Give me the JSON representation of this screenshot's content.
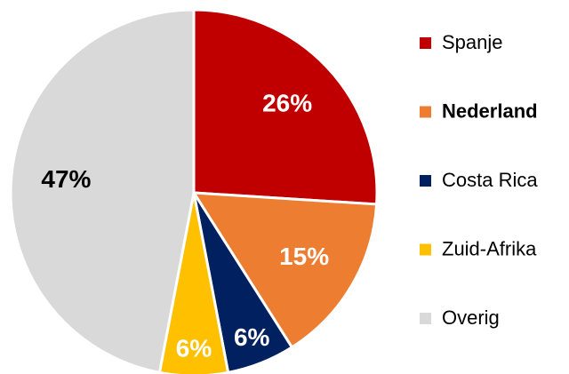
{
  "chart_data": {
    "type": "pie",
    "categories": [
      "Spanje",
      "Nederland",
      "Costa Rica",
      "Zuid-Afrika",
      "Overig"
    ],
    "values": [
      26,
      15,
      6,
      6,
      47
    ],
    "value_labels": [
      "26%",
      "15%",
      "6%",
      "6%",
      "47%"
    ],
    "colors": [
      "#c00000",
      "#ed7d31",
      "#002060",
      "#ffc000",
      "#d9d9d9"
    ],
    "label_colors": [
      "#ffffff",
      "#ffffff",
      "#ffffff",
      "#ffffff",
      "#000000"
    ],
    "legend": "right"
  }
}
